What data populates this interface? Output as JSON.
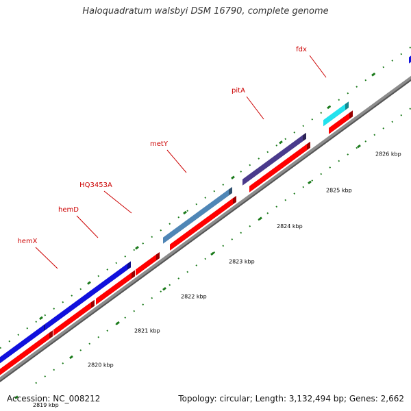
{
  "title": "Haloquadratum walsbyi DSM 16790, complete genome",
  "footer": {
    "accession": "Accession: NC_008212",
    "summary": "Topology: circular; Length: 3,132,494 bp; Genes: 2,662"
  },
  "colors": {
    "backbone": "#8c8c8c",
    "cds_track": "#ff0000",
    "tick": "#1a7a1a",
    "gene_label": "#cc0000",
    "scale_label": "#000000"
  },
  "scale_labels": [
    "2819 kbp",
    "2820 kbp",
    "2821 kbp",
    "2822 kbp",
    "2823 kbp",
    "2824 kbp",
    "2825 kbp",
    "2826 kbp"
  ],
  "genes": [
    {
      "label": "",
      "color": "#1010dd"
    },
    {
      "label": "hemX",
      "color": "#1010dd"
    },
    {
      "label": "hemD",
      "color": "#1010dd"
    },
    {
      "label": "HQ3453A",
      "color": ""
    },
    {
      "label": "metY",
      "color": "#4f86b6"
    },
    {
      "label": "pitA",
      "color": "#4a3a8c"
    },
    {
      "label": "fdx",
      "color": "#22e2ee"
    },
    {
      "label": "",
      "color": "#1010dd"
    }
  ]
}
